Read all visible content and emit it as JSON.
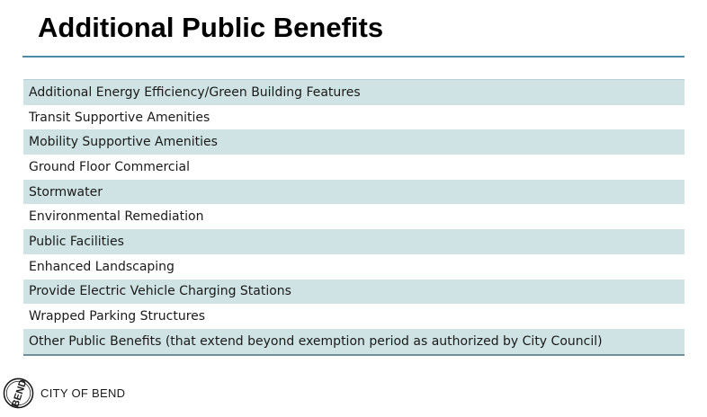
{
  "header": {
    "title": "Additional Public Benefits"
  },
  "benefits": [
    "Additional Energy Efficiency/Green Building Features",
    "Transit Supportive Amenities",
    "Mobility Supportive Amenities",
    "Ground Floor Commercial",
    "Stormwater",
    "Environmental Remediation",
    "Public Facilities",
    "Enhanced Landscaping",
    "Provide Electric Vehicle Charging Stations",
    "Wrapped Parking Structures",
    "Other Public Benefits (that extend beyond exemption period as authorized by City Council)"
  ],
  "footer": {
    "logo_text": "BEND",
    "org_name": "CITY OF BEND"
  },
  "colors": {
    "accent_rule": "#4e8aa6",
    "row_shade": "#cfe3e4"
  }
}
